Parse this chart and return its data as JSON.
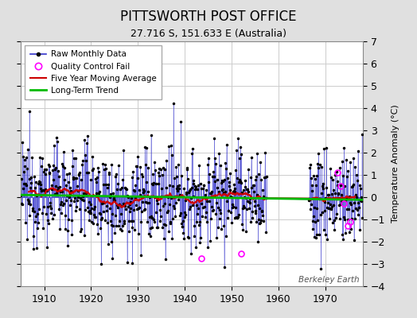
{
  "title": "PITTSWORTH POST OFFICE",
  "subtitle": "27.716 S, 151.633 E (Australia)",
  "ylabel": "Temperature Anomaly (°C)",
  "credit": "Berkeley Earth",
  "year_start": 1905,
  "year_end": 1977,
  "ylim": [
    -4,
    7
  ],
  "yticks": [
    -4,
    -3,
    -2,
    -1,
    0,
    1,
    2,
    3,
    4,
    5,
    6,
    7
  ],
  "xticks": [
    1910,
    1920,
    1930,
    1940,
    1950,
    1960,
    1970
  ],
  "bg_color": "#e0e0e0",
  "plot_bg": "#ffffff",
  "line_color": "#3333cc",
  "ma_color": "#cc0000",
  "trend_color": "#00bb00",
  "qc_color": "#ff00ff",
  "seed": 12345,
  "gap_start": 1957.5,
  "gap_end": 1966.5
}
